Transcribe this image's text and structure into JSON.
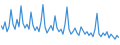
{
  "chart_data": {
    "type": "line",
    "values": [
      25,
      22,
      28,
      20,
      24,
      38,
      26,
      22,
      30,
      24,
      41,
      27,
      23,
      26,
      22,
      36,
      25,
      21,
      24,
      20,
      28,
      42,
      24,
      19,
      22,
      25,
      21,
      33,
      23,
      20,
      22,
      18,
      26,
      40,
      22,
      18,
      20,
      23,
      19,
      17,
      24,
      21,
      18,
      20,
      17,
      19,
      16,
      22,
      35,
      18,
      16,
      19,
      17,
      20,
      15,
      18,
      16,
      14,
      17,
      15
    ],
    "color": "#3a8fd8",
    "ylim": [
      10,
      45
    ],
    "tick_labels": false,
    "grid": false
  }
}
